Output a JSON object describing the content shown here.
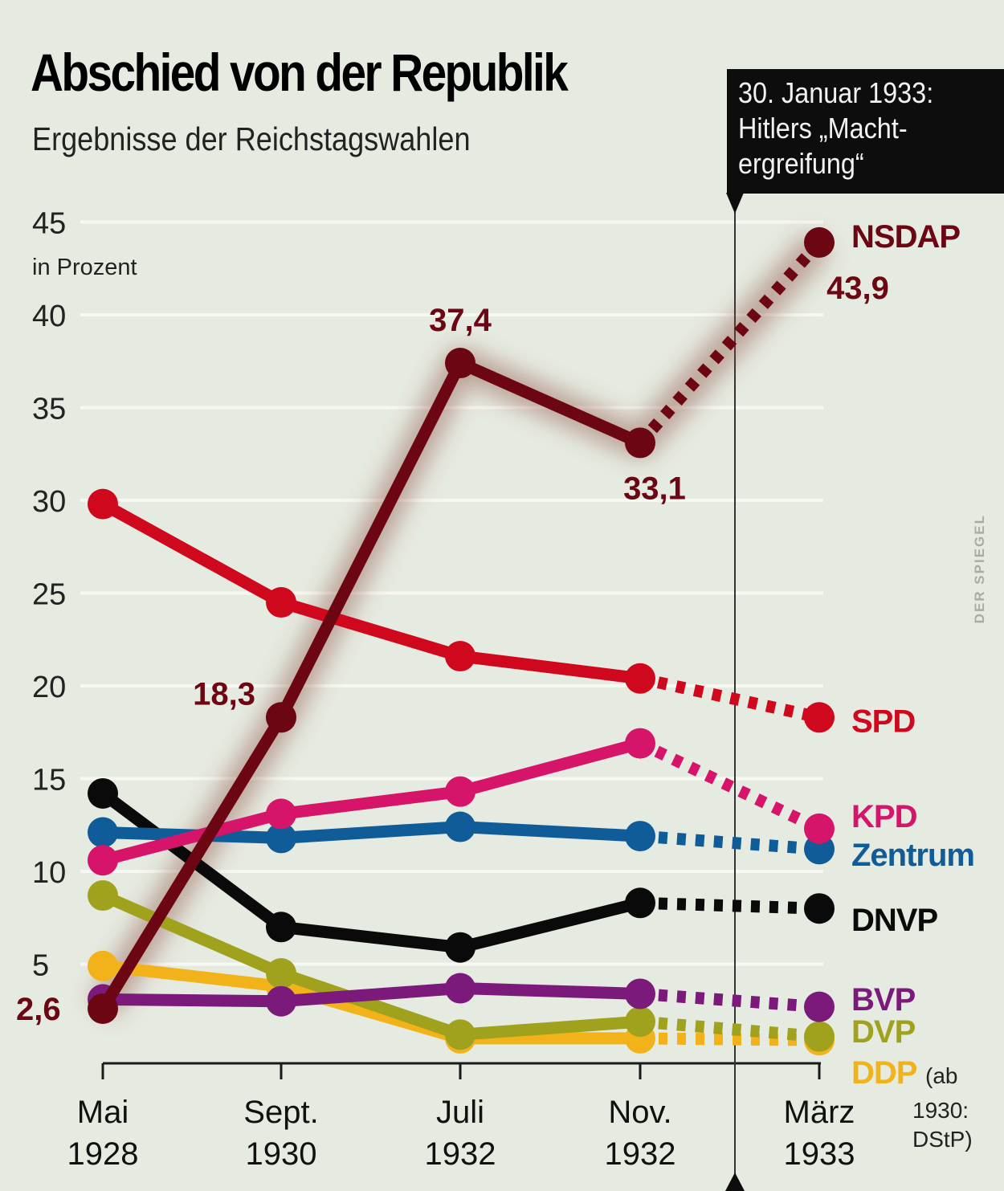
{
  "header": {
    "title": "Abschied von der Republik",
    "subtitle": "Ergebnisse der Reichstagswahlen"
  },
  "callout": {
    "lines": [
      "30. Januar 1933:",
      "Hitlers „Macht-",
      "ergreifung“"
    ]
  },
  "credit": "DER SPIEGEL",
  "footnote": [
    "(ab",
    "1930:",
    "DStP)"
  ],
  "colors": {
    "background": "#e6ebe1",
    "gridline": "#f7f8f2",
    "axis": "#1a1a1a"
  },
  "chart_data": {
    "type": "line",
    "title": "Abschied von der Republik",
    "subtitle": "Ergebnisse der Reichstagswahlen",
    "ylabel": "in Prozent",
    "xlabel": "",
    "ylim": [
      0,
      45
    ],
    "yticks": [
      5,
      10,
      15,
      20,
      25,
      30,
      35,
      40,
      45
    ],
    "grid": true,
    "legend": "right (inline labels at last point)",
    "categories": [
      {
        "line1": "Mai",
        "line2": "1928"
      },
      {
        "line1": "Sept.",
        "line2": "1930"
      },
      {
        "line1": "Juli",
        "line2": "1932"
      },
      {
        "line1": "Nov.",
        "line2": "1932"
      },
      {
        "line1": "März",
        "line2": "1933"
      }
    ],
    "annotation": {
      "text": "30. Januar 1933: Hitlers „Machtergreifung“",
      "between": [
        "Nov. 1932",
        "März 1933"
      ]
    },
    "dashed_last_segment": true,
    "series": [
      {
        "name": "DDP",
        "color": "#f2b21a",
        "values": [
          4.9,
          3.8,
          1.0,
          1.0,
          0.9
        ]
      },
      {
        "name": "DVP",
        "color": "#a0a21e",
        "values": [
          8.7,
          4.5,
          1.2,
          1.9,
          1.1
        ]
      },
      {
        "name": "BVP",
        "color": "#7b1a7a",
        "values": [
          3.1,
          3.0,
          3.7,
          3.4,
          2.7
        ]
      },
      {
        "name": "DNVP",
        "color": "#0a0a0a",
        "values": [
          14.2,
          7.0,
          5.9,
          8.3,
          8.0
        ]
      },
      {
        "name": "Zentrum",
        "color": "#0f5c99",
        "values": [
          12.1,
          11.8,
          12.4,
          11.9,
          11.2
        ]
      },
      {
        "name": "KPD",
        "color": "#d5146a",
        "values": [
          10.6,
          13.1,
          14.3,
          16.9,
          12.3
        ]
      },
      {
        "name": "SPD",
        "color": "#d0081e",
        "values": [
          29.8,
          24.5,
          21.6,
          20.4,
          18.3
        ]
      },
      {
        "name": "NSDAP",
        "color": "#6b0612",
        "values": [
          2.6,
          18.3,
          37.4,
          33.1,
          43.9
        ],
        "data_labels": [
          "2,6",
          "18,3",
          "37,4",
          "33,1",
          "43,9"
        ]
      }
    ]
  }
}
